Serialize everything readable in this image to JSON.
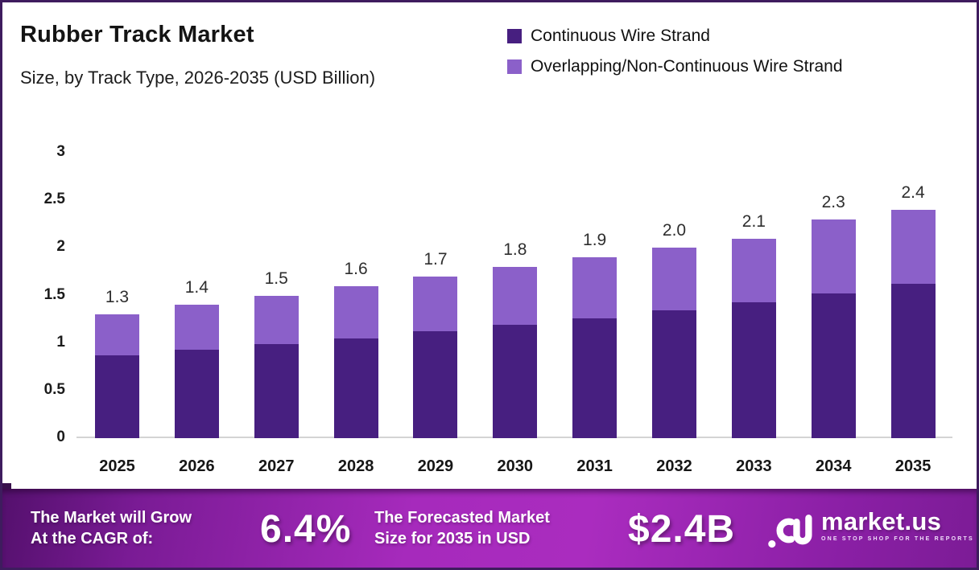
{
  "header": {
    "title": "Rubber Track Market",
    "subtitle": "Size, by Track Type, 2026-2035 (USD Billion)"
  },
  "colors": {
    "continuous": "#471f80",
    "overlapping": "#8b60c9",
    "border": "#3e1c5e",
    "baseline": "#d4d4d4",
    "banner_center": "#a62abc"
  },
  "legend": [
    {
      "label": "Continuous Wire Strand",
      "color": "#471f80"
    },
    {
      "label": "Overlapping/Non-Continuous Wire Strand",
      "color": "#8b60c9"
    }
  ],
  "chart_data": {
    "type": "bar",
    "stacked": true,
    "title": "Rubber Track Market Size, by Track Type, 2026-2035 (USD Billion)",
    "categories": [
      "2025",
      "2026",
      "2027",
      "2028",
      "2029",
      "2030",
      "2031",
      "2032",
      "2033",
      "2034",
      "2035"
    ],
    "series": [
      {
        "name": "Continuous Wire Strand",
        "color": "#471f80",
        "values": [
          0.87,
          0.93,
          0.99,
          1.05,
          1.12,
          1.19,
          1.26,
          1.34,
          1.43,
          1.52,
          1.62
        ]
      },
      {
        "name": "Overlapping/Non-Continuous Wire Strand",
        "color": "#8b60c9",
        "values": [
          0.43,
          0.47,
          0.51,
          0.55,
          0.58,
          0.61,
          0.64,
          0.66,
          0.67,
          0.78,
          0.78
        ]
      }
    ],
    "totals": [
      1.3,
      1.4,
      1.5,
      1.6,
      1.7,
      1.8,
      1.9,
      2.0,
      2.1,
      2.3,
      2.4
    ],
    "total_labels": [
      "1.3",
      "1.4",
      "1.5",
      "1.6",
      "1.7",
      "1.8",
      "1.9",
      "2.0",
      "2.1",
      "2.3",
      "2.4"
    ],
    "ylabel": "",
    "xlabel": "",
    "ylim": [
      0,
      3
    ],
    "yticks": [
      0,
      0.5,
      1,
      1.5,
      2,
      2.5,
      3
    ],
    "ytick_labels": [
      "0",
      "0.5",
      "1",
      "1.5",
      "2",
      "2.5",
      "3"
    ],
    "grid": false,
    "legend_position": "top-right"
  },
  "banner": {
    "left_line1": "The Market will Grow",
    "left_line2": "At the CAGR of:",
    "cagr_value": "6.4%",
    "mid_line1": "The Forecasted Market",
    "mid_line2": "Size for 2035 in USD",
    "forecast_value": "$2.4B",
    "logo": {
      "name": "market.us",
      "tagline": "ONE STOP SHOP FOR THE REPORTS"
    }
  }
}
